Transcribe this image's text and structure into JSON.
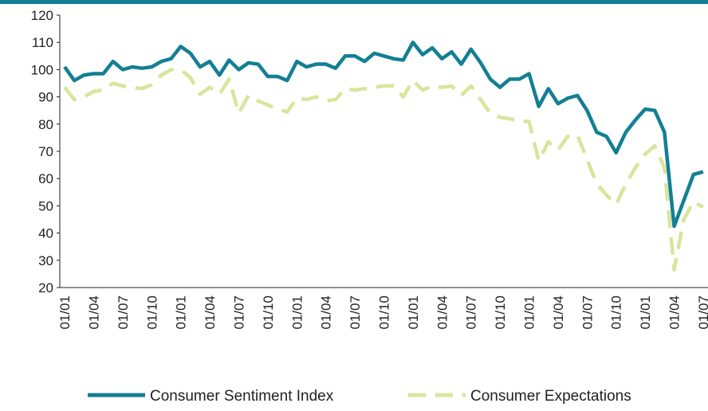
{
  "chart_data": {
    "type": "line",
    "categories": [
      "01/01",
      null,
      null,
      "01/04",
      null,
      null,
      "01/07",
      null,
      null,
      "01/10",
      null,
      null,
      "01/01",
      null,
      null,
      "01/04",
      null,
      null,
      "01/07",
      null,
      null,
      "01/10",
      null,
      null,
      "01/01",
      null,
      null,
      "01/04",
      null,
      null,
      "01/07",
      null,
      null,
      "01/10",
      null,
      null,
      "01/01",
      null,
      null,
      "01/04",
      null,
      null,
      "01/07",
      null,
      null,
      "01/10",
      null,
      null,
      "01/01",
      null,
      null,
      "01/04",
      null,
      null,
      "01/07",
      null,
      null,
      "01/10",
      null,
      null,
      "01/01",
      null,
      null,
      "01/04",
      null,
      null,
      "01/07"
    ],
    "series": [
      {
        "name": "Consumer Sentiment Index",
        "color": "#137f93",
        "dash": false,
        "values": [
          101,
          96,
          98,
          98.5,
          98.5,
          103,
          100,
          101,
          100.5,
          101,
          103,
          104,
          108.5,
          106,
          101,
          103,
          98,
          103.5,
          100,
          102.5,
          102,
          97.5,
          97.5,
          96,
          103,
          101,
          102,
          102,
          100.5,
          105,
          105,
          103,
          106,
          105,
          104,
          103.5,
          110,
          105.5,
          108,
          104,
          106.5,
          102,
          107.5,
          102.5,
          96.5,
          93.5,
          96.5,
          96.5,
          98.5,
          86.5,
          93,
          87.5,
          89.5,
          90.5,
          85,
          77,
          75.5,
          69.5,
          77,
          81.5,
          85.5,
          85,
          77,
          42.5,
          52,
          61.5,
          62.5
        ]
      },
      {
        "name": "Consumer Expectations",
        "color": "#d6e69c",
        "dash": true,
        "values": [
          93.5,
          89,
          90,
          92,
          92.5,
          95,
          94,
          93.5,
          93,
          94.5,
          98,
          100,
          100,
          97,
          91,
          93.5,
          91,
          96.5,
          84,
          90.5,
          88.5,
          87,
          85.5,
          84.5,
          89.5,
          89,
          90,
          88.5,
          89,
          93,
          92.5,
          93,
          93.5,
          94,
          94,
          90,
          96,
          92.5,
          94,
          93.5,
          94,
          90.5,
          94,
          89,
          84,
          82.5,
          82,
          81,
          81,
          66.5,
          73.5,
          70.5,
          75.5,
          76,
          67,
          58,
          54,
          50.5,
          58,
          64,
          69,
          72,
          64,
          26.5,
          45,
          51.5,
          49.5
        ]
      }
    ],
    "ylim": [
      20,
      120
    ],
    "yticks": [
      20,
      30,
      40,
      50,
      60,
      70,
      80,
      90,
      100,
      110,
      120
    ],
    "legend": "bottom"
  }
}
